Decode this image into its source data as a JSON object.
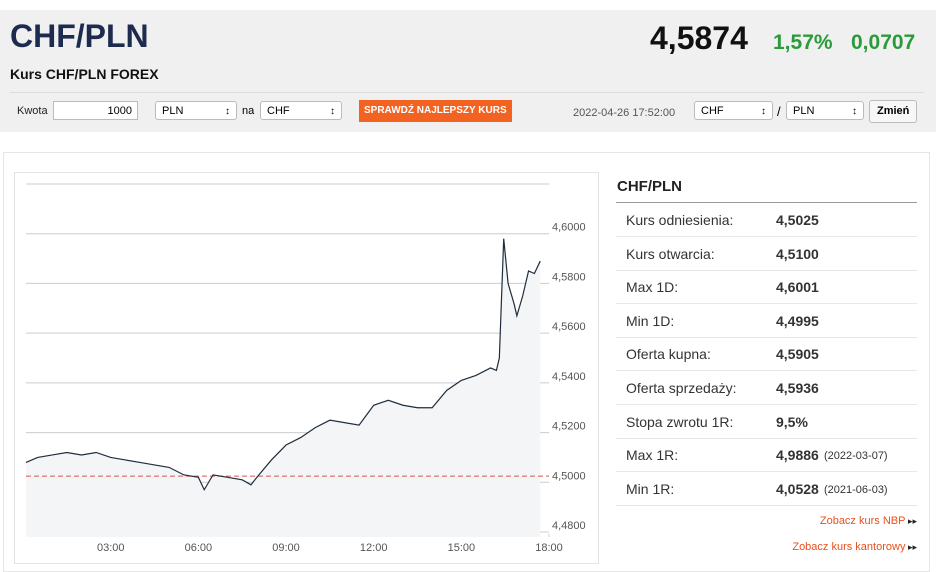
{
  "header": {
    "title": "CHF/PLN",
    "subtitle": "Kurs CHF/PLN FOREX",
    "rate": "4,5874",
    "change_pct": "1,57%",
    "change": "0,0707"
  },
  "converter": {
    "amount_label": "Kwota",
    "amount": "1000",
    "from": "PLN",
    "to_label": "na",
    "to": "CHF",
    "button": "SPRAWDŹ NAJLEPSZY KURS",
    "timestamp": "2022-04-26 17:52:00",
    "pair_base": "CHF",
    "separator": "/",
    "pair_quote": "PLN",
    "change_button": "Zmień"
  },
  "chart_data": {
    "type": "line",
    "x": [
      0.1,
      0.5,
      1,
      1.5,
      2,
      2.5,
      3,
      3.5,
      4,
      4.5,
      5,
      5.5,
      6,
      6.2,
      6.5,
      7,
      7.5,
      7.8,
      8,
      8.5,
      9,
      9.5,
      10,
      10.5,
      11,
      11.5,
      12,
      12.5,
      13,
      13.5,
      14,
      14.5,
      15,
      15.5,
      16,
      16.2,
      16.3,
      16.45,
      16.6,
      16.8,
      16.9,
      17.1,
      17.3,
      17.5,
      17.7
    ],
    "series": [
      {
        "name": "CHF/PLN",
        "color": "#1f2d3d",
        "values": [
          4.508,
          4.51,
          4.511,
          4.512,
          4.511,
          4.512,
          4.51,
          4.509,
          4.508,
          4.507,
          4.506,
          4.503,
          4.502,
          4.497,
          4.503,
          4.502,
          4.501,
          4.499,
          4.502,
          4.509,
          4.515,
          4.518,
          4.522,
          4.525,
          4.524,
          4.523,
          4.531,
          4.533,
          4.531,
          4.53,
          4.53,
          4.537,
          4.541,
          4.543,
          4.546,
          4.545,
          4.55,
          4.598,
          4.58,
          4.572,
          4.567,
          4.575,
          4.585,
          4.584,
          4.589
        ]
      }
    ],
    "reference_line": 4.5025,
    "xlim": [
      0.1,
      18
    ],
    "xticks": [
      {
        "value": 3,
        "label": "03:00"
      },
      {
        "value": 6,
        "label": "06:00"
      },
      {
        "value": 9,
        "label": "09:00"
      },
      {
        "value": 12,
        "label": "12:00"
      },
      {
        "value": 15,
        "label": "15:00"
      },
      {
        "value": 18,
        "label": "18:00"
      }
    ],
    "ylim": [
      4.478,
      4.62
    ],
    "yticks": [
      {
        "value": 4.48,
        "label": "4,4800"
      },
      {
        "value": 4.5,
        "label": "4,5000"
      },
      {
        "value": 4.52,
        "label": "4,5200"
      },
      {
        "value": 4.54,
        "label": "4,5400"
      },
      {
        "value": 4.56,
        "label": "4,5600"
      },
      {
        "value": 4.58,
        "label": "4,5800"
      },
      {
        "value": 4.6,
        "label": "4,6000"
      }
    ],
    "grid": true
  },
  "stats": {
    "title": "CHF/PLN",
    "rows": [
      {
        "label": "Kurs odniesienia:",
        "value": "4,5025"
      },
      {
        "label": "Kurs otwarcia:",
        "value": "4,5100"
      },
      {
        "label": "Max 1D:",
        "value": "4,6001"
      },
      {
        "label": "Min 1D:",
        "value": "4,4995"
      },
      {
        "label": "Oferta kupna:",
        "value": "4,5905"
      },
      {
        "label": "Oferta sprzedaży:",
        "value": "4,5936"
      },
      {
        "label": "Stopa zwrotu 1R:",
        "value": "9,5%"
      },
      {
        "label": "Max 1R:",
        "value": "4,9886",
        "date": "(2022-03-07)"
      },
      {
        "label": "Min 1R:",
        "value": "4,0528",
        "date": "(2021-06-03)"
      }
    ]
  },
  "links": [
    "Zobacz kurs NBP",
    "Zobacz kurs kantorowy"
  ]
}
